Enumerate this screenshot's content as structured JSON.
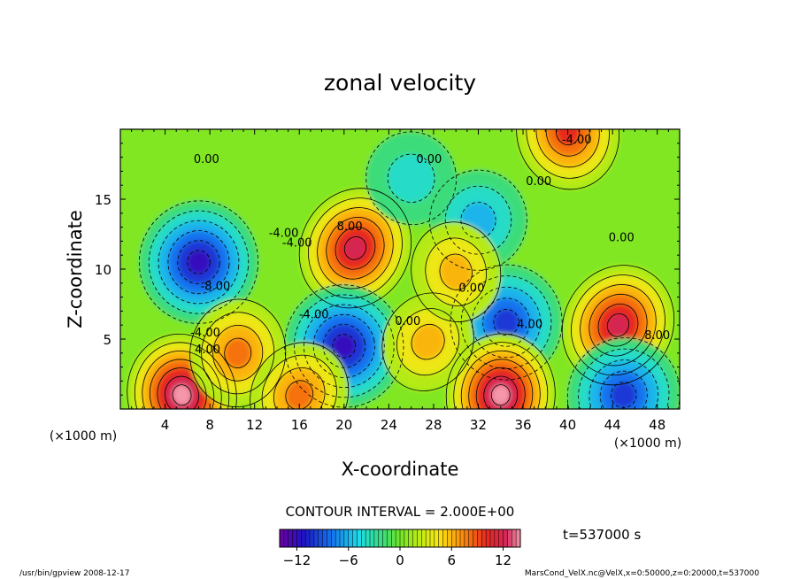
{
  "chart_data": {
    "type": "heatmap",
    "title": "zonal velocity",
    "xlabel": "X-coordinate",
    "ylabel": "Z-coordinate",
    "x_unit_left": "(×1000 m)",
    "x_unit_right": "(×1000 m)",
    "xlim": [
      0,
      50
    ],
    "ylim": [
      0,
      20
    ],
    "x_ticks": [
      4,
      8,
      12,
      16,
      20,
      24,
      28,
      32,
      36,
      40,
      44,
      48
    ],
    "y_ticks": [
      5,
      10,
      15
    ],
    "contour_interval_text": "CONTOUR INTERVAL = 2.000E+00",
    "time_text": "t=537000 s",
    "colorbar": {
      "min": -14,
      "max": 14,
      "ticks": [
        -12,
        -6,
        0,
        6,
        12
      ]
    },
    "contour_labels": [
      {
        "text": "8.00",
        "x": 20.5,
        "z": 12.8
      },
      {
        "text": "-8.00",
        "x": 8.5,
        "z": 8.5
      },
      {
        "text": "-4.00",
        "x": 17.3,
        "z": 6.5
      },
      {
        "text": "-4.00",
        "x": 14.6,
        "z": 12.3
      },
      {
        "text": "-4.00",
        "x": 7.6,
        "z": 5.2
      },
      {
        "text": "0.00",
        "x": 7.7,
        "z": 17.6
      },
      {
        "text": "0.00",
        "x": 27.6,
        "z": 17.6
      },
      {
        "text": "0.00",
        "x": 37.4,
        "z": 16.0
      },
      {
        "text": "-4.00",
        "x": 40.8,
        "z": 19.0
      },
      {
        "text": "0.00",
        "x": 31.4,
        "z": 8.4
      },
      {
        "text": "4.00",
        "x": 36.6,
        "z": 5.8
      },
      {
        "text": "8.00",
        "x": 48.0,
        "z": 5.0
      },
      {
        "text": "0.00",
        "x": 25.7,
        "z": 6.0
      },
      {
        "text": "0.00",
        "x": 44.8,
        "z": 12.0
      },
      {
        "text": "4.00",
        "x": 7.8,
        "z": 4.0
      },
      {
        "text": "-4.00",
        "x": 15.8,
        "z": 11.6
      }
    ],
    "features": [
      {
        "sign": "negative",
        "x": 7,
        "z": 10.5,
        "peak": -12
      },
      {
        "sign": "positive",
        "x": 21,
        "z": 11.5,
        "peak": 12
      },
      {
        "sign": "negative",
        "x": 20,
        "z": 4.5,
        "peak": -12
      },
      {
        "sign": "negative",
        "x": 34.5,
        "z": 6.2,
        "peak": -10
      },
      {
        "sign": "positive",
        "x": 44.5,
        "z": 6.0,
        "peak": 12
      },
      {
        "sign": "positive",
        "x": 5.5,
        "z": 1.0,
        "peak": 14
      },
      {
        "sign": "positive",
        "x": 34,
        "z": 1.0,
        "peak": 14
      },
      {
        "sign": "negative",
        "x": 45,
        "z": 1.0,
        "peak": -10
      },
      {
        "sign": "positive",
        "x": 40,
        "z": 19.8,
        "peak": 10
      },
      {
        "sign": "positive",
        "x": 10.5,
        "z": 4.0,
        "peak": 8
      },
      {
        "sign": "positive",
        "x": 27.5,
        "z": 4.8,
        "peak": 6
      },
      {
        "sign": "negative",
        "x": 26,
        "z": 16.5,
        "peak": -4
      },
      {
        "sign": "negative",
        "x": 32,
        "z": 13.5,
        "peak": -5
      },
      {
        "sign": "positive",
        "x": 16,
        "z": 1.0,
        "peak": 8
      },
      {
        "sign": "positive",
        "x": 30,
        "z": 9.8,
        "peak": 5
      }
    ]
  },
  "footer": {
    "left": "/usr/bin/gpview   2008-12-17",
    "right": "MarsCond_VelX.nc@VelX,x=0:50000,z=0:20000,t=537000"
  }
}
